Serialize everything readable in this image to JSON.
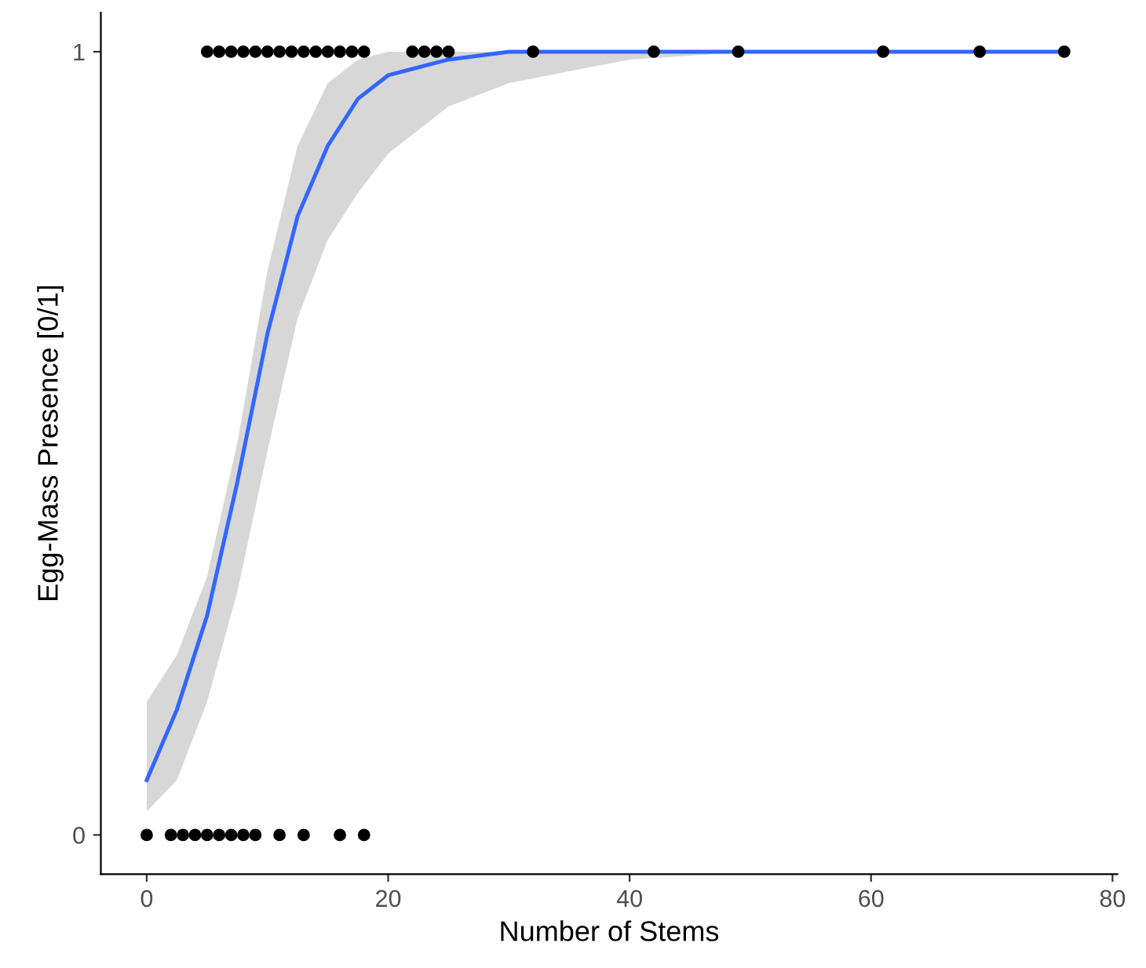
{
  "chart_data": {
    "type": "scatter",
    "xlabel": "Number of Stems",
    "ylabel": "Egg-Mass Presence [0/1]",
    "xlim": [
      -3.8,
      80.4
    ],
    "ylim": [
      -0.05,
      1.05
    ],
    "xticks": [
      0,
      20,
      40,
      60,
      80
    ],
    "yticks": [
      0,
      1
    ],
    "grid": false,
    "legend": false,
    "series": [
      {
        "marker": "circle",
        "color": "#000000",
        "x": [
          0,
          2,
          3,
          4,
          5,
          6,
          7,
          8,
          9,
          11,
          13,
          16,
          18
        ],
        "values": [
          0,
          0,
          0,
          0,
          0,
          0,
          0,
          0,
          0,
          0,
          0,
          0,
          0
        ]
      },
      {
        "marker": "circle",
        "color": "#000000",
        "x": [
          5,
          6,
          7,
          8,
          9,
          10,
          11,
          12,
          13,
          14,
          15,
          16,
          17,
          18,
          22,
          23,
          24,
          25,
          32,
          42,
          49,
          61,
          69,
          76
        ],
        "values": [
          1,
          1,
          1,
          1,
          1,
          1,
          1,
          1,
          1,
          1,
          1,
          1,
          1,
          1,
          1,
          1,
          1,
          1,
          1,
          1,
          1,
          1,
          1,
          1
        ]
      },
      {
        "type": "line",
        "marker": "none",
        "color": "#3366ff",
        "line_style": "solid",
        "x": [
          0,
          2.5,
          5,
          7.5,
          10,
          12.5,
          15,
          17.5,
          20,
          25,
          30,
          40,
          50,
          76
        ],
        "values": [
          0.07,
          0.16,
          0.28,
          0.45,
          0.64,
          0.79,
          0.88,
          0.94,
          0.97,
          0.99,
          1.0,
          1,
          1,
          1
        ],
        "upper": [
          0.17,
          0.23,
          0.33,
          0.5,
          0.72,
          0.88,
          0.96,
          0.99,
          1,
          1,
          1,
          1,
          1,
          1
        ],
        "lower": [
          0.03,
          0.07,
          0.17,
          0.31,
          0.49,
          0.66,
          0.76,
          0.82,
          0.87,
          0.93,
          0.96,
          0.99,
          1,
          1
        ]
      }
    ]
  }
}
